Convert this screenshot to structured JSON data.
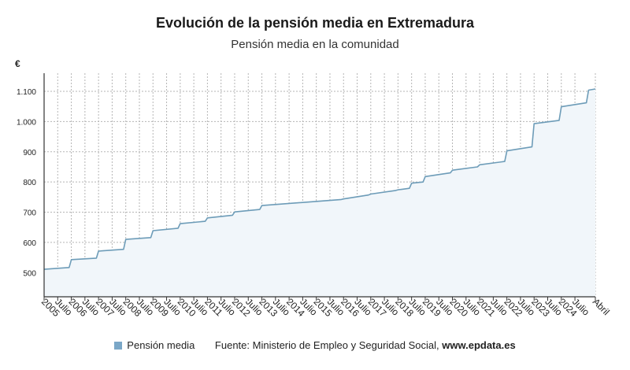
{
  "colors": {
    "line": "#6d9cb8",
    "area": "#f1f6fa",
    "grid": "#b5b5b5",
    "axis": "#333333",
    "swatch": "#7aa7c7"
  },
  "chart_data": {
    "type": "line",
    "title": "Evolución de la pensión media en Extremadura",
    "subtitle": "Pensión media en la comunidad",
    "ylabel": "€",
    "ylim": [
      420,
      1160
    ],
    "yticks": [
      500,
      600,
      700,
      800,
      900,
      1000,
      1100
    ],
    "ytick_labels": [
      "500",
      "600",
      "700",
      "800",
      "900",
      "1.000",
      "1.100"
    ],
    "xlim": [
      2005.0,
      2025.25
    ],
    "xticks": [
      {
        "x": 2005.0,
        "label": "2005"
      },
      {
        "x": 2005.5,
        "label": "Julio"
      },
      {
        "x": 2006.0,
        "label": "2006"
      },
      {
        "x": 2006.5,
        "label": "Julio"
      },
      {
        "x": 2007.0,
        "label": "2007"
      },
      {
        "x": 2007.5,
        "label": "Julio"
      },
      {
        "x": 2008.0,
        "label": "2008"
      },
      {
        "x": 2008.5,
        "label": "Julio"
      },
      {
        "x": 2009.0,
        "label": "2009"
      },
      {
        "x": 2009.5,
        "label": "Julio"
      },
      {
        "x": 2010.0,
        "label": "2010"
      },
      {
        "x": 2010.5,
        "label": "Julio"
      },
      {
        "x": 2011.0,
        "label": "2011"
      },
      {
        "x": 2011.5,
        "label": "Julio"
      },
      {
        "x": 2012.0,
        "label": "2012"
      },
      {
        "x": 2012.5,
        "label": "Julio"
      },
      {
        "x": 2013.0,
        "label": "2013"
      },
      {
        "x": 2013.5,
        "label": "Julio"
      },
      {
        "x": 2014.0,
        "label": "2014"
      },
      {
        "x": 2014.5,
        "label": "Julio"
      },
      {
        "x": 2015.0,
        "label": "2015"
      },
      {
        "x": 2015.5,
        "label": "Julio"
      },
      {
        "x": 2016.0,
        "label": "2016"
      },
      {
        "x": 2016.5,
        "label": "Julio"
      },
      {
        "x": 2017.0,
        "label": "2017"
      },
      {
        "x": 2017.5,
        "label": "Julio"
      },
      {
        "x": 2018.0,
        "label": "2018"
      },
      {
        "x": 2018.5,
        "label": "Julio"
      },
      {
        "x": 2019.0,
        "label": "2019"
      },
      {
        "x": 2019.5,
        "label": "Julio"
      },
      {
        "x": 2020.0,
        "label": "2020"
      },
      {
        "x": 2020.5,
        "label": "Julio"
      },
      {
        "x": 2021.0,
        "label": "2021"
      },
      {
        "x": 2021.5,
        "label": "Julio"
      },
      {
        "x": 2022.0,
        "label": "2022"
      },
      {
        "x": 2022.5,
        "label": "Julio"
      },
      {
        "x": 2023.0,
        "label": "2023"
      },
      {
        "x": 2023.5,
        "label": "Julio"
      },
      {
        "x": 2024.0,
        "label": "2024"
      },
      {
        "x": 2024.5,
        "label": "Julio"
      },
      {
        "x": 2025.25,
        "label": "Abril"
      }
    ],
    "series": [
      {
        "name": "Pensión media",
        "points": [
          [
            2005.0,
            511
          ],
          [
            2005.92,
            517
          ],
          [
            2006.0,
            543
          ],
          [
            2006.92,
            548
          ],
          [
            2007.0,
            571
          ],
          [
            2007.92,
            577
          ],
          [
            2008.0,
            610
          ],
          [
            2008.92,
            616
          ],
          [
            2009.0,
            639
          ],
          [
            2009.92,
            647
          ],
          [
            2010.0,
            662
          ],
          [
            2010.92,
            670
          ],
          [
            2011.0,
            681
          ],
          [
            2011.92,
            690
          ],
          [
            2012.0,
            701
          ],
          [
            2012.92,
            709
          ],
          [
            2013.0,
            722
          ],
          [
            2015.92,
            742
          ],
          [
            2016.0,
            744
          ],
          [
            2016.92,
            757
          ],
          [
            2017.0,
            760
          ],
          [
            2017.92,
            772
          ],
          [
            2018.0,
            774
          ],
          [
            2018.42,
            779
          ],
          [
            2018.5,
            796
          ],
          [
            2018.92,
            800
          ],
          [
            2019.0,
            818
          ],
          [
            2019.92,
            830
          ],
          [
            2020.0,
            839
          ],
          [
            2020.92,
            850
          ],
          [
            2021.0,
            857
          ],
          [
            2021.92,
            868
          ],
          [
            2022.0,
            903
          ],
          [
            2022.92,
            916
          ],
          [
            2023.0,
            993
          ],
          [
            2023.92,
            1004
          ],
          [
            2024.0,
            1049
          ],
          [
            2024.92,
            1062
          ],
          [
            2025.0,
            1104
          ],
          [
            2025.25,
            1108
          ]
        ]
      }
    ]
  },
  "legend": {
    "label": "Pensión media"
  },
  "source": {
    "text": "Fuente: Ministerio de Empleo y Seguridad Social, ",
    "site": "www.epdata.es"
  }
}
